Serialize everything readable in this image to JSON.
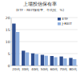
{
  "chart_data": {
    "type": "bar",
    "title": "上場投信保有率",
    "subtitle": "(ETF・REIT保有率、年代別、%)",
    "categories": [
      "20代",
      "30代",
      "40代",
      "50代",
      "60代",
      "70代",
      "80代"
    ],
    "series": [
      {
        "name": "ETF",
        "color": "#2f4f8f",
        "values": [
          17.5,
          6.2,
          5.1,
          4.5,
          4.0,
          3.8,
          3.2
        ]
      },
      {
        "name": "J-REIT",
        "color": "#8fb0e0",
        "values": [
          14.0,
          5.5,
          4.8,
          4.1,
          3.5,
          3.0,
          2.7
        ]
      }
    ],
    "ylim": [
      0,
      20
    ],
    "yticks": [
      0,
      5,
      10,
      15,
      20
    ],
    "grid": true,
    "legend": "upper right"
  }
}
